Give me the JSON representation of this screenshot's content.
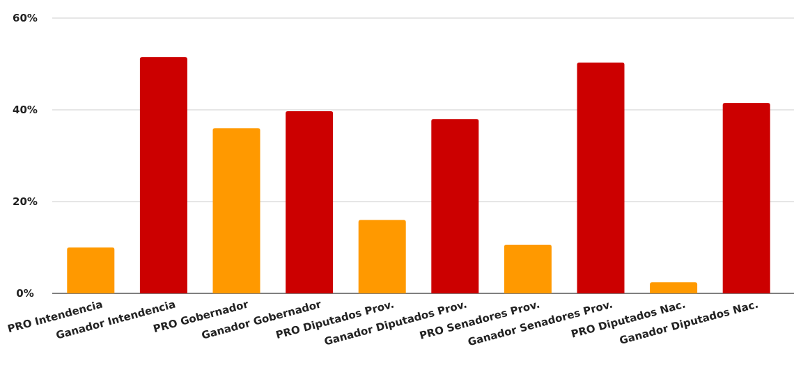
{
  "chart_data": {
    "type": "bar",
    "categories": [
      "PRO Intendencia",
      "Ganador Intendencia",
      "PRO Gobernador",
      "Ganador Gobernador",
      "PRO Diputados Prov.",
      "Ganador Diputados Prov.",
      "PRO Senadores Prov.",
      "Ganador Senadores Prov.",
      "PRO Diputados Nac.",
      "Ganador Diputados Nac."
    ],
    "values": [
      10.0,
      51.5,
      36.0,
      39.7,
      16.0,
      38.0,
      10.6,
      50.3,
      2.4,
      41.5
    ],
    "colors": [
      "#ff9900",
      "#cc0000",
      "#ff9900",
      "#cc0000",
      "#ff9900",
      "#cc0000",
      "#ff9900",
      "#cc0000",
      "#ff9900",
      "#cc0000"
    ],
    "ylim": [
      0,
      60
    ],
    "yticks": [
      0,
      20,
      40,
      60
    ],
    "ytick_labels": [
      "0%",
      "20%",
      "40%",
      "60%"
    ],
    "grid": true,
    "title": "",
    "xlabel": "",
    "ylabel": ""
  }
}
